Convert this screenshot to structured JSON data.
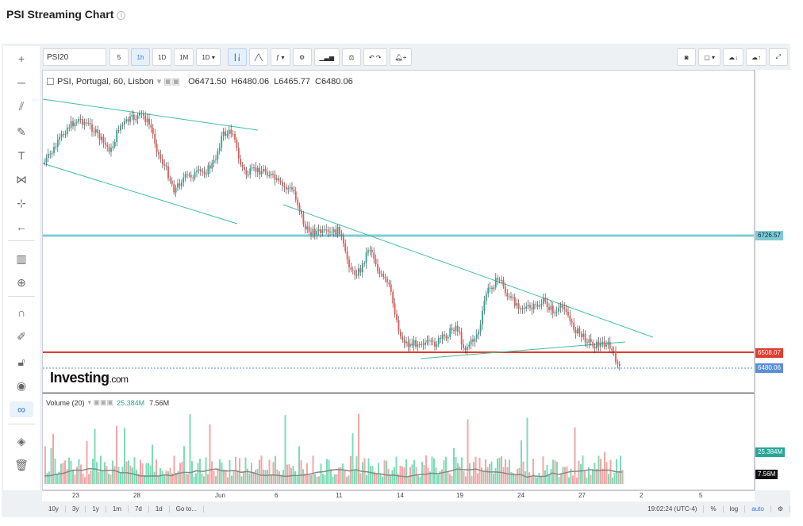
{
  "page_title": "PSI Streaming Chart",
  "toolbar": {
    "symbol": "PSI20",
    "intervals": [
      "5",
      "1h",
      "1D",
      "1M",
      "1D"
    ],
    "active_interval": "1h"
  },
  "legend": {
    "name": "PSI, Portugal, 60, Lisbon",
    "open": "O6471.50",
    "high": "H6480.06",
    "low": "L6465.77",
    "close": "C6480.06"
  },
  "volume_legend": {
    "name": "Volume (20)",
    "v1": "25.384M",
    "v2": "7.56M"
  },
  "price_tags": {
    "upper_line": "6726.57",
    "red_line": "6508.07",
    "last": "6480.06",
    "vol1": "25.384M",
    "vol2": "7.56M"
  },
  "time_labels": [
    "23",
    "28",
    "Jun",
    "6",
    "11",
    "14",
    "19",
    "24",
    "27",
    "2",
    "5"
  ],
  "bottom_bar": {
    "ranges": [
      "10y",
      "3y",
      "1y",
      "1m",
      "7d",
      "1d"
    ],
    "goto": "Go to...",
    "clock": "19:02:24 (UTC-4)",
    "pct": "%",
    "log": "log",
    "auto": "auto"
  },
  "logo": {
    "main": "Investing",
    "suffix": ".com"
  },
  "colors": {
    "up": "#26a69a",
    "down": "#ef5350",
    "cyan_line": "#7ecbd6",
    "red_line": "#e23b2e",
    "trend": "#3fbf9f"
  }
}
